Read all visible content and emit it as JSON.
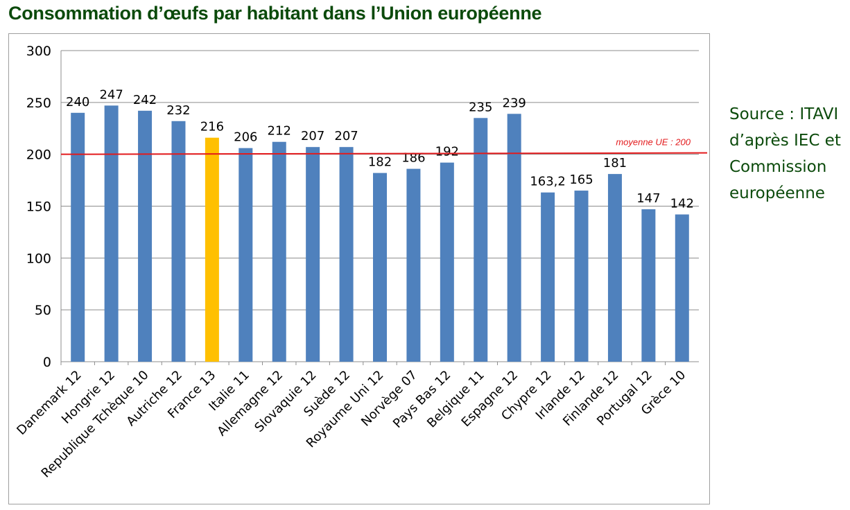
{
  "title": "Consommation d’œufs par habitant dans l’Union européenne",
  "source": "Source : ITAVI d’après IEC et Commission européenne",
  "colors": {
    "bar": "#4f81bd",
    "highlight": "#ffc000",
    "mean_line": "#e31a1c",
    "title": "#0b4a0b"
  },
  "chart_data": {
    "type": "bar",
    "categories": [
      "Danemark 12",
      "Hongrie 12",
      "Republique Tchèque 10",
      "Autriche 12",
      "France 13",
      "Italie 11",
      "Allemagne 12",
      "Slovaquie  12",
      "Suède 12",
      "Royaume Uni 12",
      "Norvège 07",
      "Pays Bas 12",
      "Belgique 11",
      "Espagne 12",
      "Chypre 12",
      "Irlande 12",
      "Finlande 12",
      "Portugal 12",
      "Grèce 10"
    ],
    "values": [
      240,
      247,
      242,
      232,
      216,
      206,
      212,
      207,
      207,
      182,
      186,
      192,
      235,
      239,
      163.2,
      165,
      181,
      147,
      142
    ],
    "value_labels": [
      "240",
      "247",
      "242",
      "232",
      "216",
      "206",
      "212",
      "207",
      "207",
      "182",
      "186",
      "192",
      "235",
      "239",
      "163,2",
      "165",
      "181",
      "147",
      "142"
    ],
    "highlight_category": "France 13",
    "ylim": [
      0,
      300
    ],
    "yticks": [
      0,
      50,
      100,
      150,
      200,
      250,
      300
    ],
    "grid": true,
    "reference_line": {
      "value": 200,
      "label": "moyenne UE : 200"
    }
  }
}
